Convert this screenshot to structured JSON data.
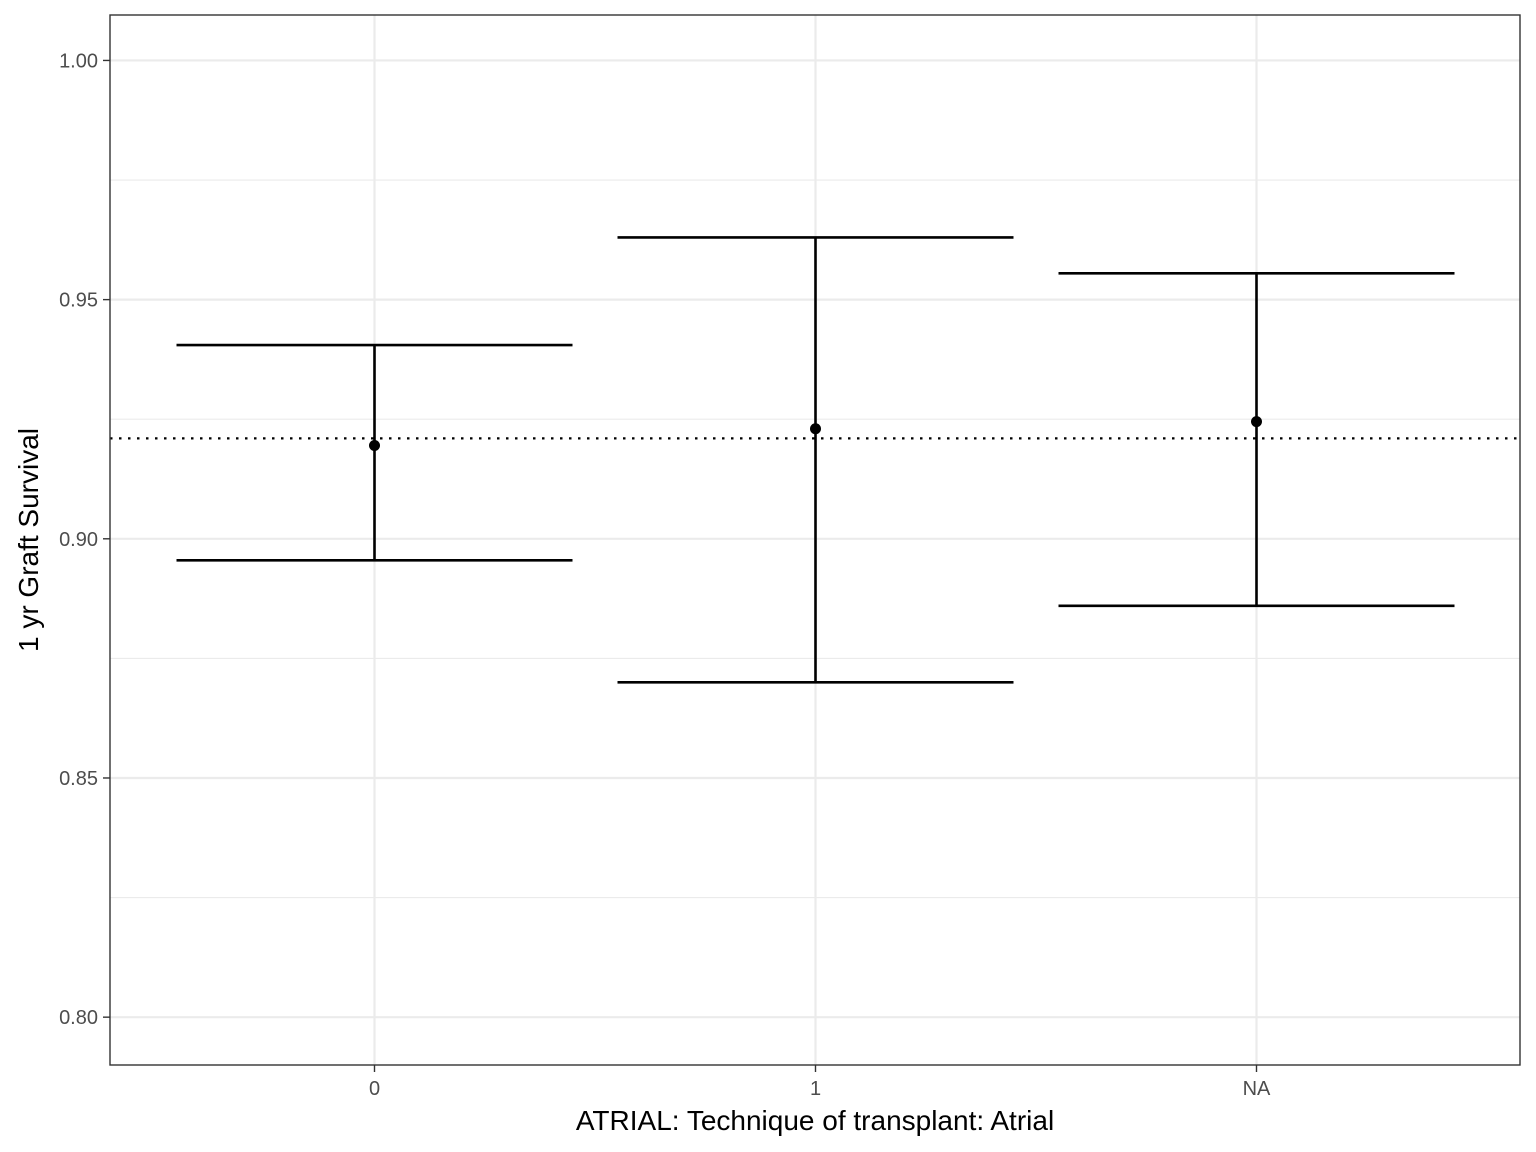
{
  "chart_data": {
    "type": "errorbar",
    "title": "",
    "xlabel": "ATRIAL: Technique of transplant: Atrial",
    "ylabel": "1 yr Graft Survival",
    "categories": [
      "0",
      "1",
      "NA"
    ],
    "series": [
      {
        "estimate": [
          0.9195,
          0.923,
          0.9245
        ],
        "lower": [
          0.8955,
          0.87,
          0.886
        ],
        "upper": [
          0.9405,
          0.963,
          0.9555
        ]
      }
    ],
    "reference_line": {
      "value": 0.921,
      "style": "dotted"
    },
    "ylim": [
      0.79,
      1.0095
    ],
    "yticks": [
      "0.80",
      "0.85",
      "0.90",
      "0.95",
      "1.00"
    ],
    "ytick_values": [
      0.8,
      0.85,
      0.9,
      0.95,
      1.0
    ],
    "grid": true,
    "colors": {
      "marks": "#000000",
      "grid": "#ebebeb",
      "panel_border": "#333333",
      "tick_text": "#4d4d4d"
    }
  }
}
